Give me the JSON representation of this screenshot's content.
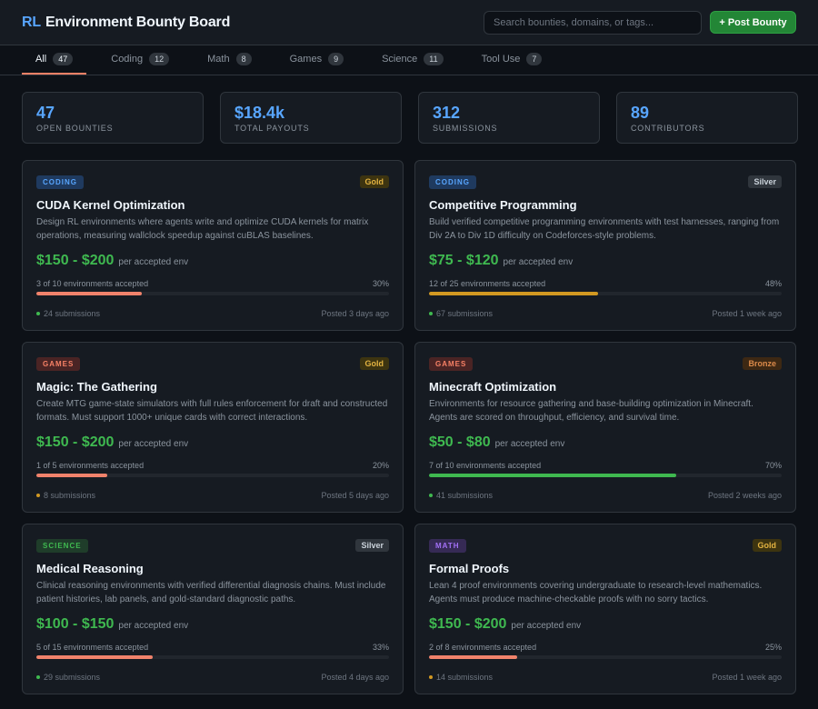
{
  "header": {
    "brand_prefix": "RL",
    "brand_title": "Environment Bounty Board",
    "search_placeholder": "Search bounties, domains, or tags...",
    "post_button": "+ Post Bounty"
  },
  "tabs": [
    {
      "label": "All",
      "count": "47",
      "active": true
    },
    {
      "label": "Coding",
      "count": "12",
      "active": false
    },
    {
      "label": "Math",
      "count": "8",
      "active": false
    },
    {
      "label": "Games",
      "count": "9",
      "active": false
    },
    {
      "label": "Science",
      "count": "11",
      "active": false
    },
    {
      "label": "Tool Use",
      "count": "7",
      "active": false
    }
  ],
  "stats": [
    {
      "value": "47",
      "label": "OPEN BOUNTIES"
    },
    {
      "value": "$18.4k",
      "label": "TOTAL PAYOUTS"
    },
    {
      "value": "312",
      "label": "SUBMISSIONS"
    },
    {
      "value": "89",
      "label": "CONTRIBUTORS"
    }
  ],
  "colors": {
    "accent_blue": "#58a6ff",
    "price_green": "#3fb950",
    "category": {
      "CODING": {
        "bg": "#1f3a5f",
        "fg": "#58a6ff"
      },
      "GAMES": {
        "bg": "#4a2424",
        "fg": "#f78166"
      },
      "SCIENCE": {
        "bg": "#1f3d2a",
        "fg": "#3fb950"
      },
      "MATH": {
        "bg": "#362a55",
        "fg": "#a371f7"
      }
    },
    "tier": {
      "Gold": {
        "bg": "#3d3410",
        "fg": "#e3b341"
      },
      "Silver": {
        "bg": "#30363d",
        "fg": "#c9d1d9"
      },
      "Bronze": {
        "bg": "#3d2813",
        "fg": "#db8a4a"
      }
    },
    "bar": {
      "salmon": "#f0826b",
      "amber": "#d29922",
      "green": "#3fb950"
    },
    "dot": {
      "green": "#3fb950",
      "orange": "#d29922"
    }
  },
  "bounties": [
    {
      "category": "CODING",
      "tier": "Gold",
      "title": "CUDA Kernel Optimization",
      "description": "Design RL environments where agents write and optimize CUDA kernels for matrix operations, measuring wallclock speedup against cuBLAS baselines.",
      "price": "$150 - $200",
      "price_suffix": "per accepted env",
      "progress_text": "3 of 10 environments accepted",
      "progress_pct": "30%",
      "progress": 0.3,
      "bar_color": "salmon",
      "submissions": "24 submissions",
      "dot_color": "green",
      "posted": "Posted 3 days ago"
    },
    {
      "category": "CODING",
      "tier": "Silver",
      "title": "Competitive Programming",
      "description": "Build verified competitive programming environments with test harnesses, ranging from Div 2A to Div 1D difficulty on Codeforces-style problems.",
      "price": "$75 - $120",
      "price_suffix": "per accepted env",
      "progress_text": "12 of 25 environments accepted",
      "progress_pct": "48%",
      "progress": 0.48,
      "bar_color": "amber",
      "submissions": "67 submissions",
      "dot_color": "green",
      "posted": "Posted 1 week ago"
    },
    {
      "category": "GAMES",
      "tier": "Gold",
      "title": "Magic: The Gathering",
      "description": "Create MTG game-state simulators with full rules enforcement for draft and constructed formats. Must support 1000+ unique cards with correct interactions.",
      "price": "$150 - $200",
      "price_suffix": "per accepted env",
      "progress_text": "1 of 5 environments accepted",
      "progress_pct": "20%",
      "progress": 0.2,
      "bar_color": "salmon",
      "submissions": "8 submissions",
      "dot_color": "orange",
      "posted": "Posted 5 days ago"
    },
    {
      "category": "GAMES",
      "tier": "Bronze",
      "title": "Minecraft Optimization",
      "description": "Environments for resource gathering and base-building optimization in Minecraft. Agents are scored on throughput, efficiency, and survival time.",
      "price": "$50 - $80",
      "price_suffix": "per accepted env",
      "progress_text": "7 of 10 environments accepted",
      "progress_pct": "70%",
      "progress": 0.7,
      "bar_color": "green",
      "submissions": "41 submissions",
      "dot_color": "green",
      "posted": "Posted 2 weeks ago"
    },
    {
      "category": "SCIENCE",
      "tier": "Silver",
      "title": "Medical Reasoning",
      "description": "Clinical reasoning environments with verified differential diagnosis chains. Must include patient histories, lab panels, and gold-standard diagnostic paths.",
      "price": "$100 - $150",
      "price_suffix": "per accepted env",
      "progress_text": "5 of 15 environments accepted",
      "progress_pct": "33%",
      "progress": 0.33,
      "bar_color": "salmon",
      "submissions": "29 submissions",
      "dot_color": "green",
      "posted": "Posted 4 days ago"
    },
    {
      "category": "MATH",
      "tier": "Gold",
      "title": "Formal Proofs",
      "description": "Lean 4 proof environments covering undergraduate to research-level mathematics. Agents must produce machine-checkable proofs with no sorry tactics.",
      "price": "$150 - $200",
      "price_suffix": "per accepted env",
      "progress_text": "2 of 8 environments accepted",
      "progress_pct": "25%",
      "progress": 0.25,
      "bar_color": "salmon",
      "submissions": "14 submissions",
      "dot_color": "orange",
      "posted": "Posted 1 week ago"
    }
  ]
}
